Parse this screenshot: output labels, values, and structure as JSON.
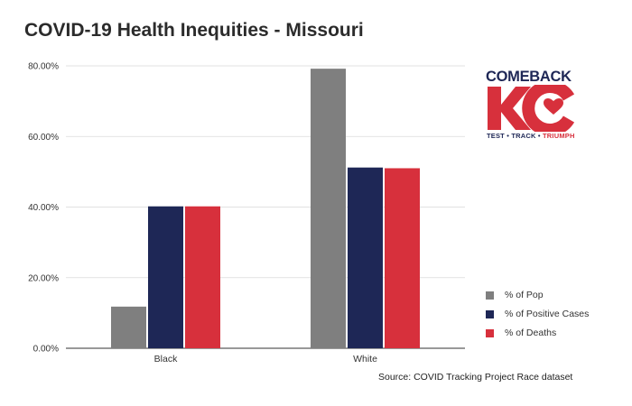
{
  "chart_data": {
    "type": "bar",
    "title": "COVID-19 Health Inequities - Missouri",
    "categories": [
      "Black",
      "White"
    ],
    "series": [
      {
        "name": "% of Pop",
        "color": "#7f7f7f",
        "values": [
          11.8,
          79.2
        ]
      },
      {
        "name": "% of Positive Cases",
        "color": "#1e2756",
        "values": [
          40.2,
          51.2
        ]
      },
      {
        "name": "% of Deaths",
        "color": "#d7303c",
        "values": [
          40.2,
          51.0
        ]
      }
    ],
    "ylim": [
      0,
      80
    ],
    "yticks": [
      0,
      20,
      40,
      60,
      80
    ],
    "ytick_labels": [
      "0.00%",
      "20.00%",
      "40.00%",
      "60.00%",
      "80.00%"
    ],
    "grid": true,
    "legend": "bottom-right",
    "xlabel": "",
    "ylabel": ""
  },
  "source": "Source: COVID Tracking Project Race dataset",
  "logo": {
    "top": "COMEBACK",
    "mark": "KC",
    "tagline_navy": "TEST • TRACK •",
    "tagline_red": "TRIUMPH",
    "color_navy": "#1e2756",
    "color_red": "#d7303c"
  }
}
